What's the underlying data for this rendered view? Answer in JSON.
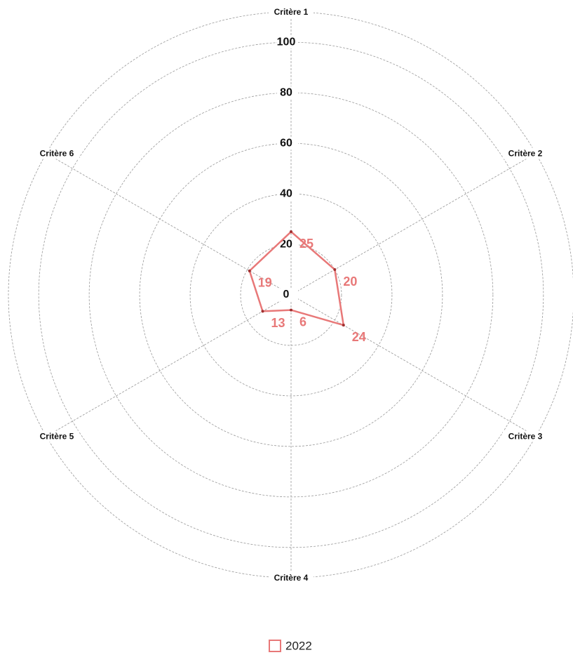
{
  "chart_data": {
    "type": "radar",
    "categories": [
      "Critère 1",
      "Critère 2",
      "Critère 3",
      "Critère 4",
      "Critère 5",
      "Critère 6"
    ],
    "series": [
      {
        "name": "2022",
        "color": "#e87878",
        "values": [
          25,
          20,
          24,
          6,
          13,
          19
        ]
      }
    ],
    "ylim": [
      0,
      112
    ],
    "yticks": [
      0,
      20,
      40,
      60,
      80,
      100
    ],
    "grid": true,
    "legend": "bottom"
  }
}
